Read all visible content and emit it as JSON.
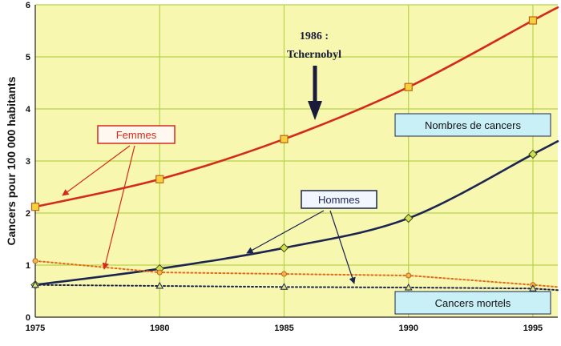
{
  "chart_data": {
    "type": "line",
    "ylabel": "Cancers pour 100 000 habitants",
    "xlabel": "",
    "xlim": [
      1975,
      1996
    ],
    "ylim": [
      0,
      6
    ],
    "x_ticks": [
      "1975",
      "1980",
      "1985",
      "1990",
      "1995"
    ],
    "y_ticks": [
      "0",
      "1",
      "2",
      "3",
      "4",
      "5",
      "6"
    ],
    "grid": true,
    "background": "#f7f7b0",
    "gridline_color": "#b7d34a",
    "series": [
      {
        "name": "Femmes - Nombres de cancers",
        "color": "#d42a1a",
        "style": "solid",
        "marker": "square",
        "x": [
          1975,
          1980,
          1985,
          1990,
          1995,
          1996
        ],
        "y": [
          2.12,
          2.65,
          3.42,
          4.42,
          5.7,
          5.95
        ],
        "marker_count": 5
      },
      {
        "name": "Hommes - Nombres de cancers",
        "color": "#1c2450",
        "style": "solid",
        "marker": "diamond",
        "x": [
          1975,
          1980,
          1985,
          1990,
          1995,
          1996
        ],
        "y": [
          0.62,
          0.93,
          1.33,
          1.9,
          3.13,
          3.38
        ],
        "marker_count": 5
      },
      {
        "name": "Femmes - Cancers mortels",
        "color": "#e46a1a",
        "style": "dotted",
        "marker": "circle",
        "x": [
          1975,
          1980,
          1985,
          1990,
          1995,
          1996
        ],
        "y": [
          1.08,
          0.86,
          0.83,
          0.8,
          0.62,
          0.58
        ],
        "marker_count": 5
      },
      {
        "name": "Hommes - Cancers mortels",
        "color": "#1c2450",
        "style": "dotted",
        "marker": "triangle",
        "x": [
          1975,
          1980,
          1985,
          1990,
          1995,
          1996
        ],
        "y": [
          0.62,
          0.6,
          0.58,
          0.57,
          0.55,
          0.52
        ],
        "marker_count": 5
      }
    ],
    "annotations": {
      "event_line1": "1986 :",
      "event_line2": "Tchernobyl",
      "event_year": 1986,
      "femmes_label": "Femmes",
      "hommes_label": "Hommes",
      "box_nombres": "Nombres de cancers",
      "box_mortels": "Cancers mortels"
    }
  }
}
